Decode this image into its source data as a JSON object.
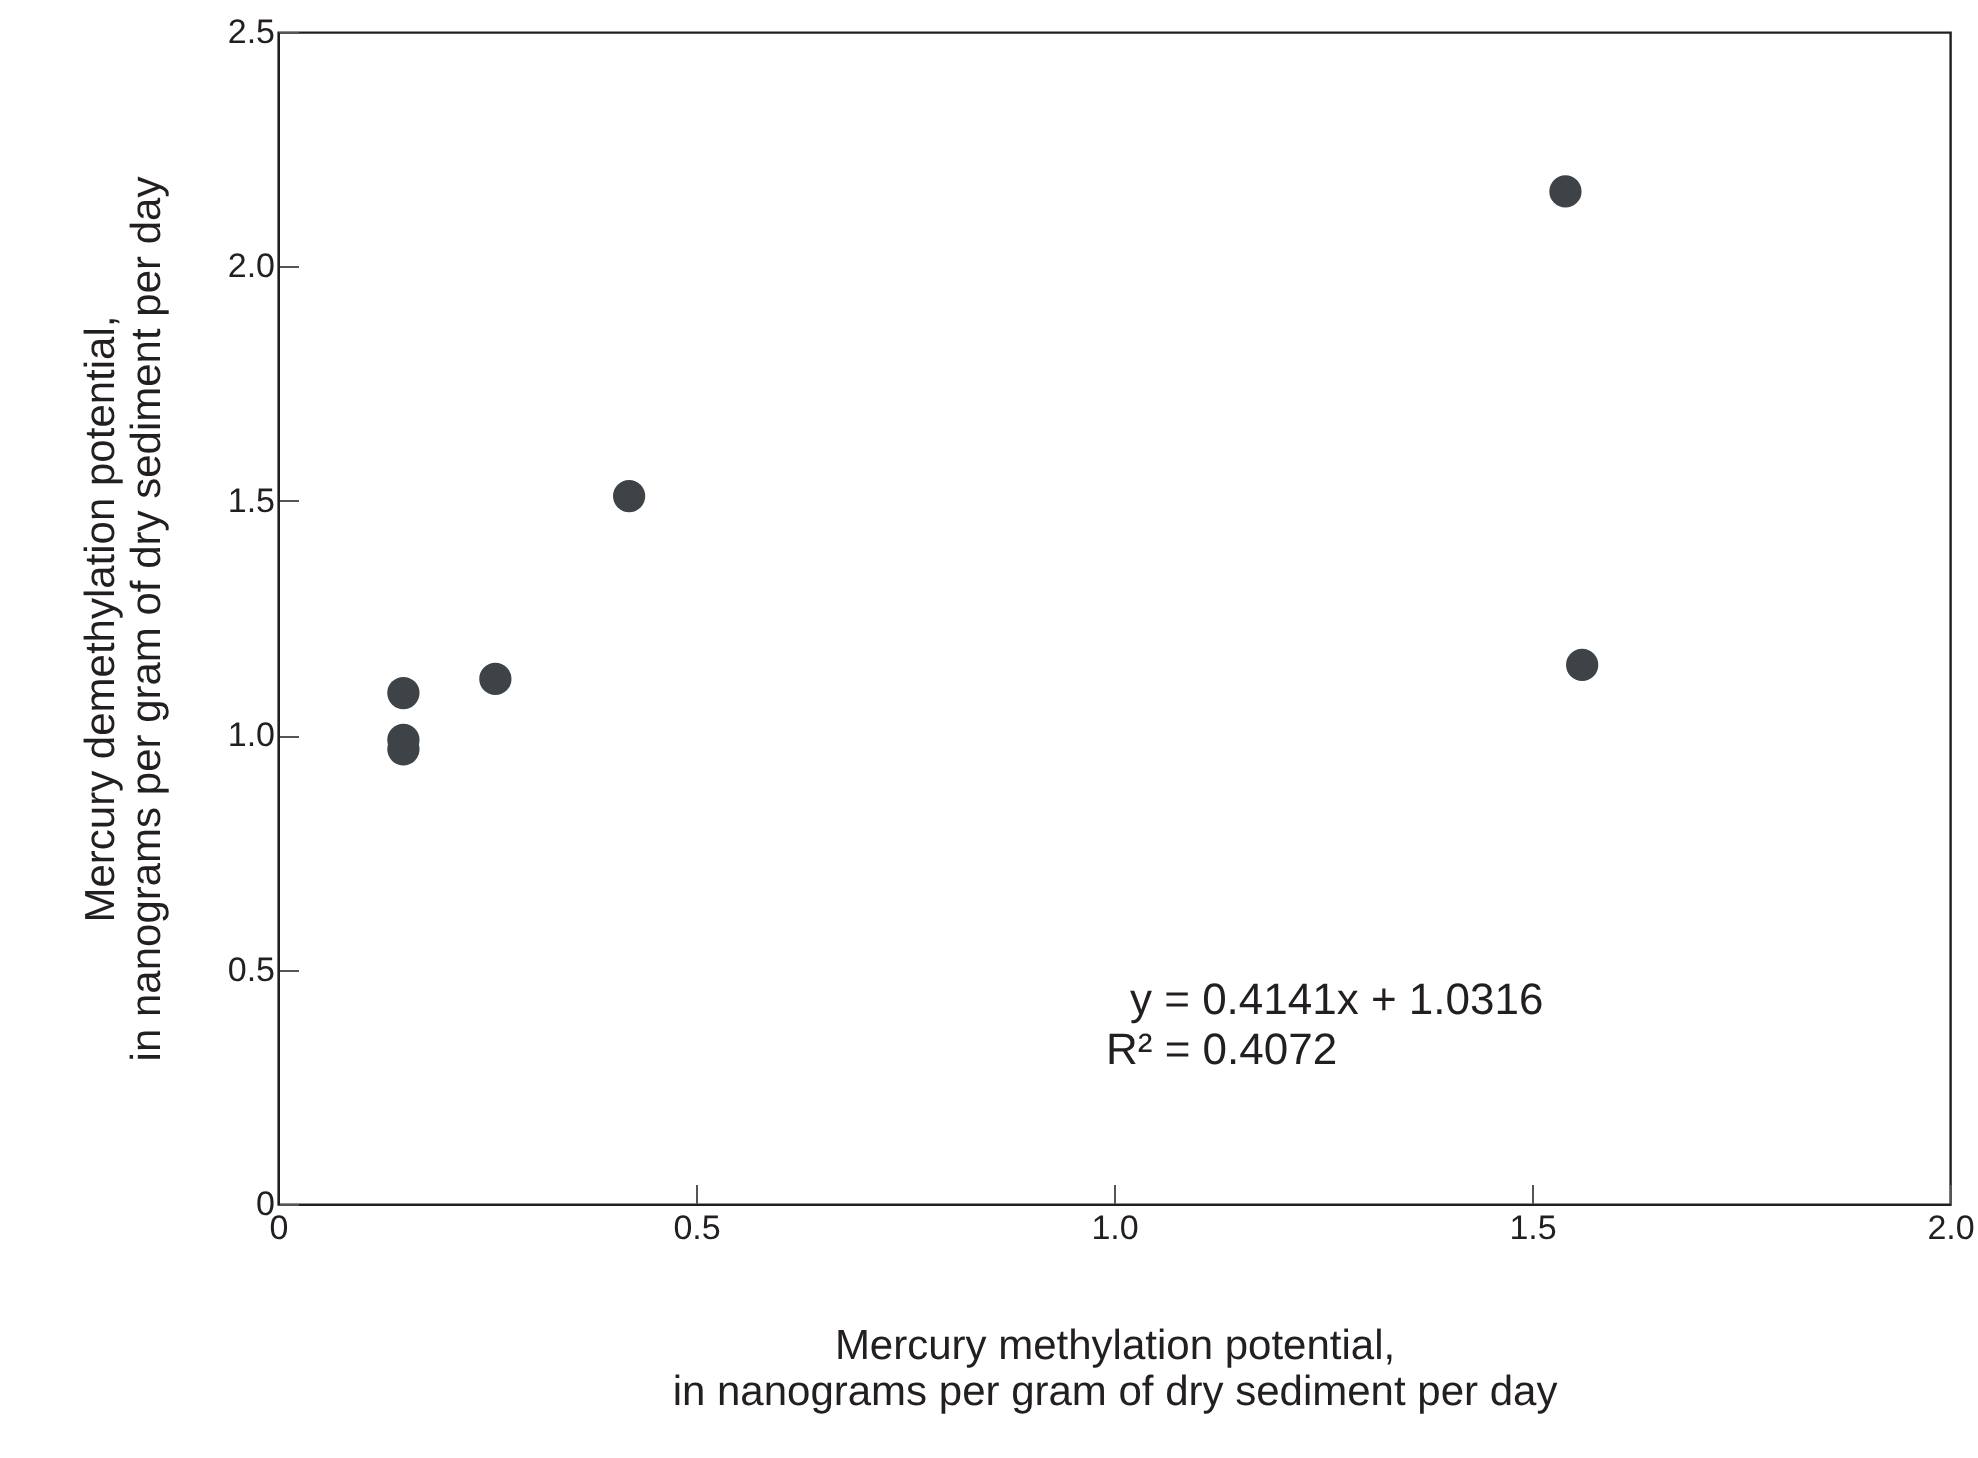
{
  "chart_data": {
    "type": "scatter",
    "xlabel": "Mercury methylation potential,\nin nanograms per gram of dry sediment per day",
    "ylabel": "Mercury demethylation potential,\nin nanograms per gram of dry sediment per day",
    "x": [
      0.15,
      0.15,
      0.15,
      0.26,
      0.42,
      1.54,
      1.56
    ],
    "series": [
      {
        "color": "#3d4346",
        "values": [
          1.09,
          0.99,
          0.97,
          1.12,
          1.51,
          2.16,
          1.15
        ]
      }
    ],
    "xlim": [
      0,
      2.0
    ],
    "xticks": [
      0,
      0.5,
      {
        "value": 1,
        "label": "1.0"
      },
      1.5,
      {
        "value": 2,
        "label": "2.0"
      }
    ],
    "ylim": [
      0,
      2.5
    ],
    "yticks": [
      0,
      0.5,
      {
        "value": 1,
        "label": "1.0"
      },
      1.5,
      {
        "value": 2,
        "label": "2.0"
      },
      2.5
    ],
    "grid": false,
    "marker": "circle",
    "annotations": [
      "y = 0.4141x + 1.0316",
      "R² = 0.4072"
    ]
  }
}
